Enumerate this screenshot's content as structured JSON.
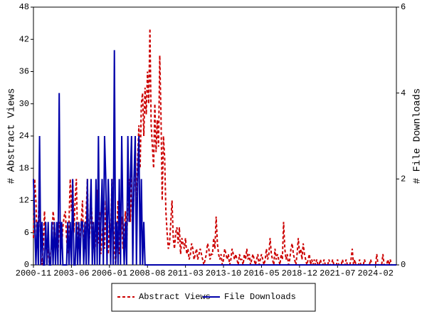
{
  "chart_data": {
    "type": "line",
    "x": [
      "2000-11",
      "2000-12",
      "2001-01",
      "2001-02",
      "2001-03",
      "2001-04",
      "2001-05",
      "2001-06",
      "2001-07",
      "2001-08",
      "2001-09",
      "2001-10",
      "2001-11",
      "2001-12",
      "2002-01",
      "2002-02",
      "2002-03",
      "2002-04",
      "2002-05",
      "2002-06",
      "2002-07",
      "2002-08",
      "2002-09",
      "2002-10",
      "2002-11",
      "2002-12",
      "2003-01",
      "2003-02",
      "2003-03",
      "2003-04",
      "2003-05",
      "2003-06",
      "2003-07",
      "2003-08",
      "2003-09",
      "2003-10",
      "2003-11",
      "2003-12",
      "2004-01",
      "2004-02",
      "2004-03",
      "2004-04",
      "2004-05",
      "2004-06",
      "2004-07",
      "2004-08",
      "2004-09",
      "2004-10",
      "2004-11",
      "2004-12",
      "2005-01",
      "2005-02",
      "2005-03",
      "2005-04",
      "2005-05",
      "2005-06",
      "2005-07",
      "2005-08",
      "2005-09",
      "2005-10",
      "2005-11",
      "2005-12",
      "2006-01",
      "2006-02",
      "2006-03",
      "2006-04",
      "2006-05",
      "2006-06",
      "2006-07",
      "2006-08",
      "2006-09",
      "2006-10",
      "2006-11",
      "2006-12",
      "2007-01",
      "2007-02",
      "2007-03",
      "2007-04",
      "2007-05",
      "2007-06",
      "2007-07",
      "2007-08",
      "2007-09",
      "2007-10",
      "2007-11",
      "2007-12",
      "2008-01",
      "2008-02",
      "2008-03",
      "2008-04",
      "2008-05",
      "2008-06",
      "2008-07",
      "2008-08",
      "2008-09",
      "2008-10",
      "2008-11",
      "2008-12",
      "2009-01",
      "2009-02",
      "2009-03",
      "2009-04",
      "2009-05",
      "2009-06",
      "2009-07",
      "2009-08",
      "2009-09",
      "2009-10",
      "2009-11",
      "2009-12",
      "2010-01",
      "2010-02",
      "2010-03",
      "2010-04",
      "2010-05",
      "2010-06",
      "2010-07",
      "2010-08",
      "2010-09",
      "2010-10",
      "2010-11",
      "2010-12",
      "2011-01",
      "2011-02",
      "2011-03",
      "2011-04",
      "2011-05",
      "2011-06",
      "2011-07",
      "2011-08",
      "2011-09",
      "2011-10",
      "2011-11",
      "2011-12",
      "2012-01",
      "2012-02",
      "2012-03",
      "2012-04",
      "2012-05",
      "2012-06",
      "2012-07",
      "2012-08",
      "2012-09",
      "2012-10",
      "2012-11",
      "2012-12",
      "2013-01",
      "2013-02",
      "2013-03",
      "2013-04",
      "2013-05",
      "2013-06",
      "2013-07",
      "2013-08",
      "2013-09",
      "2013-10",
      "2013-11",
      "2013-12",
      "2014-01",
      "2014-02",
      "2014-03",
      "2014-04",
      "2014-05",
      "2014-06",
      "2014-07",
      "2014-08",
      "2014-09",
      "2014-10",
      "2014-11",
      "2014-12",
      "2015-01",
      "2015-02",
      "2015-03",
      "2015-04",
      "2015-05",
      "2015-06",
      "2015-07",
      "2015-08",
      "2015-09",
      "2015-10",
      "2015-11",
      "2015-12",
      "2016-01",
      "2016-02",
      "2016-03",
      "2016-04",
      "2016-05",
      "2016-06",
      "2016-07",
      "2016-08",
      "2016-09",
      "2016-10",
      "2016-11",
      "2016-12",
      "2017-01",
      "2017-02",
      "2017-03",
      "2017-04",
      "2017-05",
      "2017-06",
      "2017-07",
      "2017-08",
      "2017-09",
      "2017-10",
      "2017-11",
      "2017-12",
      "2018-01",
      "2018-02",
      "2018-03",
      "2018-04",
      "2018-05",
      "2018-06",
      "2018-07",
      "2018-08",
      "2018-09",
      "2018-10",
      "2018-11",
      "2018-12",
      "2019-01",
      "2019-02",
      "2019-03",
      "2019-04",
      "2019-05",
      "2019-06",
      "2019-07",
      "2019-08",
      "2019-09",
      "2019-10",
      "2019-11",
      "2019-12",
      "2020-01",
      "2020-02",
      "2020-03",
      "2020-04",
      "2020-05",
      "2020-06",
      "2020-07",
      "2020-08",
      "2020-09",
      "2020-10",
      "2020-11",
      "2020-12",
      "2021-01",
      "2021-02",
      "2021-03",
      "2021-04",
      "2021-05",
      "2021-06",
      "2021-07",
      "2021-08",
      "2021-09",
      "2021-10",
      "2021-11",
      "2021-12",
      "2022-01",
      "2022-02",
      "2022-03",
      "2022-04",
      "2022-05",
      "2022-06",
      "2022-07",
      "2022-08",
      "2022-09",
      "2022-10",
      "2022-11",
      "2022-12",
      "2023-01",
      "2023-02",
      "2023-03",
      "2023-04",
      "2023-05",
      "2023-06",
      "2023-07",
      "2023-08",
      "2023-09",
      "2023-10",
      "2023-11",
      "2023-12",
      "2024-01",
      "2024-02",
      "2024-03",
      "2024-04",
      "2024-05",
      "2024-06",
      "2024-07",
      "2024-08",
      "2024-09",
      "2024-10",
      "2024-11",
      "2024-12",
      "2025-01",
      "2025-02",
      "2025-03",
      "2025-04",
      "2025-05",
      "2025-06",
      "2025-07"
    ],
    "series": [
      {
        "name": "Abstract Views",
        "color": "#cc0000",
        "style": "dashed",
        "axis": "y",
        "values": [
          5,
          16,
          12,
          3,
          8,
          16,
          2,
          0,
          3,
          10,
          4,
          2,
          3,
          0,
          2,
          4,
          10,
          8,
          3,
          5,
          2,
          8,
          6,
          3,
          7,
          9,
          10,
          5,
          2,
          8,
          16,
          10,
          16,
          6,
          12,
          16,
          4,
          3,
          6,
          8,
          12,
          2,
          4,
          10,
          16,
          3,
          6,
          12,
          8,
          4,
          2,
          6,
          14,
          4,
          10,
          2,
          6,
          8,
          3,
          12,
          5,
          2,
          8,
          4,
          16,
          10,
          3,
          0,
          6,
          12,
          2,
          4,
          9,
          3,
          6,
          10,
          4,
          12,
          16,
          8,
          18,
          6,
          14,
          22,
          10,
          20,
          26,
          18,
          30,
          32,
          24,
          33,
          28,
          36,
          30,
          44,
          26,
          22,
          18,
          30,
          21,
          27,
          22,
          39,
          28,
          12,
          24,
          20,
          10,
          6,
          3,
          4,
          8,
          12,
          5,
          3,
          6,
          7,
          4,
          7,
          2,
          5,
          4,
          3,
          5,
          2,
          3,
          1,
          2,
          4,
          3,
          1,
          2,
          3,
          1,
          2,
          3,
          2,
          1,
          0,
          1,
          2,
          4,
          3,
          1,
          2,
          2,
          5,
          3,
          9,
          4,
          2,
          1,
          2,
          0,
          1,
          3,
          2,
          1,
          2,
          0,
          1,
          3,
          2,
          1,
          2,
          1,
          0,
          2,
          1,
          1,
          0,
          2,
          1,
          3,
          1,
          2,
          0,
          1,
          2,
          1,
          0,
          1,
          2,
          0,
          1,
          2,
          1,
          0,
          1,
          3,
          1,
          2,
          5,
          2,
          1,
          0,
          3,
          1,
          2,
          1,
          0,
          2,
          1,
          8,
          3,
          1,
          2,
          0,
          1,
          3,
          4,
          2,
          1,
          0,
          2,
          5,
          2,
          3,
          1,
          4,
          2,
          1,
          0,
          1,
          2,
          0,
          1,
          0,
          1,
          0,
          1,
          0,
          0,
          1,
          0,
          0,
          1,
          0,
          0,
          0,
          1,
          0,
          0,
          1,
          0,
          0,
          0,
          1,
          0,
          0,
          0,
          1,
          0,
          0,
          1,
          0,
          0,
          0,
          1,
          3,
          0,
          1,
          0,
          0,
          0,
          1,
          0,
          0,
          0,
          1,
          0,
          0,
          0,
          0,
          1,
          0,
          0,
          0,
          0,
          2,
          0,
          0,
          0,
          0,
          2,
          0,
          0,
          0,
          1,
          0,
          1,
          0,
          0,
          0,
          0,
          0
        ]
      },
      {
        "name": "File Downloads",
        "color": "#0000aa",
        "style": "solid",
        "axis": "y2",
        "values": [
          2,
          1,
          0,
          1,
          0,
          3,
          0,
          1,
          0,
          0,
          1,
          0,
          1,
          0,
          0,
          1,
          0,
          1,
          0,
          1,
          0,
          4,
          0,
          1,
          0,
          0,
          0,
          0,
          1,
          0,
          1,
          0,
          2,
          0,
          0,
          1,
          0,
          1,
          0,
          1,
          1,
          0,
          1,
          0,
          2,
          0,
          1,
          2,
          0,
          1,
          0,
          2,
          0,
          3,
          0,
          1,
          2,
          0,
          3,
          2,
          0,
          2,
          1,
          0,
          2,
          0,
          5,
          0,
          1,
          0,
          2,
          0,
          3,
          1,
          0,
          1,
          0,
          3,
          1,
          2,
          3,
          0,
          2,
          3,
          0,
          2,
          3,
          0,
          2,
          0,
          1,
          0,
          0,
          0,
          0,
          0,
          0,
          0,
          0,
          0,
          0,
          0,
          0,
          0,
          0,
          0,
          0,
          0,
          0,
          0,
          0,
          0,
          0,
          0,
          0,
          0,
          0,
          0,
          0,
          0,
          0,
          0,
          0,
          0,
          0,
          0,
          0,
          0,
          0,
          0,
          0,
          0,
          0,
          0,
          0,
          0,
          0,
          0,
          0,
          0,
          0,
          0,
          0,
          0,
          0,
          0,
          0,
          0,
          0,
          0,
          0,
          0,
          0,
          0,
          0,
          0,
          0,
          0,
          0,
          0,
          0,
          0,
          0,
          0,
          0,
          0,
          0,
          0,
          0,
          0,
          0,
          0,
          0,
          0,
          0,
          0,
          0,
          0,
          0,
          0,
          0,
          0,
          0,
          0,
          0,
          0,
          0,
          0,
          0,
          0,
          0,
          0,
          0,
          0,
          0,
          0,
          0,
          0,
          0,
          0,
          0,
          0,
          0,
          0,
          0,
          0,
          0,
          0,
          0,
          0,
          0,
          0,
          0,
          0,
          0,
          0,
          0,
          0,
          0,
          0,
          0,
          0,
          0,
          0,
          0,
          0,
          0,
          0,
          0,
          0,
          0,
          0,
          0,
          0,
          0,
          0,
          0,
          0,
          0,
          0,
          0,
          0,
          0,
          0,
          0,
          0,
          0,
          0,
          0,
          0,
          0,
          0,
          0,
          0,
          0,
          0,
          0,
          0,
          0,
          0,
          0,
          0,
          0,
          0,
          0,
          0,
          0,
          0,
          0,
          0,
          0,
          0,
          0,
          0,
          0,
          0,
          0,
          0,
          0,
          0,
          0,
          0,
          0,
          0,
          0,
          0,
          0,
          0,
          0,
          0,
          0,
          0,
          0,
          0,
          0,
          0,
          0
        ]
      }
    ],
    "xlim": [
      "2000-11",
      "2025-07"
    ],
    "xticks": [
      "2000-11",
      "2003-06",
      "2006-01",
      "2008-08",
      "2011-03",
      "2013-10",
      "2016-05",
      "2018-12",
      "2021-07",
      "2024-02"
    ],
    "ylabel": "# Abstract Views",
    "ylim": [
      0,
      48
    ],
    "yticks": [
      0,
      6,
      12,
      18,
      24,
      30,
      36,
      42,
      48
    ],
    "y2label": "# File Downloads",
    "y2lim": [
      0,
      6
    ],
    "y2ticks": [
      0,
      2,
      4,
      6
    ],
    "legend": "bottom",
    "grid": false
  }
}
